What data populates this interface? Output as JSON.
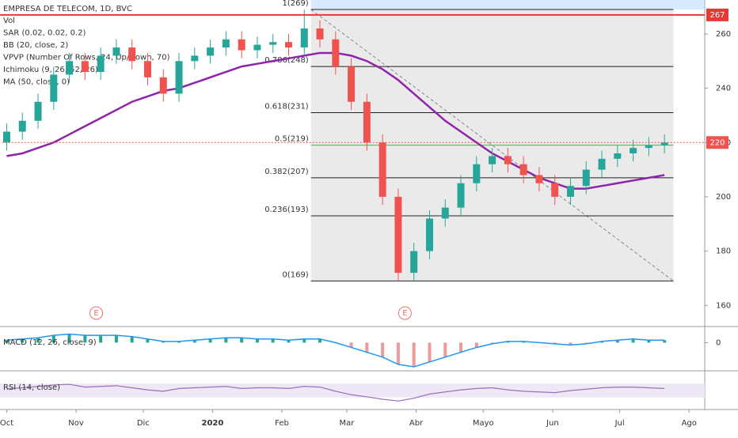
{
  "chart_data": {
    "type": "candlestick",
    "title": "EMPRESA DE TELECOM, 1D, BVC",
    "indicators": [
      "Vol",
      "SAR (0.02, 0.02, 0.2)",
      "BB (20, close, 2)",
      "VPVP (Number Of Rows, 24, Up/Down, 70)",
      "Ichimoku (9, 26, 52, 26)",
      "MA (50, close, 0)"
    ],
    "x": [
      0,
      7,
      14,
      21,
      28,
      35,
      42,
      49,
      56,
      63,
      70,
      77,
      84,
      91,
      98,
      105,
      112,
      119,
      126,
      133,
      140,
      147,
      154,
      161,
      168,
      175,
      182,
      189,
      196,
      203,
      210,
      217,
      224,
      231,
      238,
      245,
      252,
      259,
      266,
      273,
      280,
      287,
      294
    ],
    "open": [
      220,
      224,
      228,
      235,
      245,
      250,
      246,
      252,
      255,
      250,
      244,
      238,
      250,
      252,
      255,
      258,
      254,
      256,
      257,
      255,
      262,
      258,
      248,
      235,
      220,
      200,
      172,
      180,
      192,
      196,
      205,
      212,
      215,
      212,
      208,
      205,
      200,
      204,
      210,
      214,
      216,
      218,
      219
    ],
    "high": [
      227,
      231,
      238,
      248,
      253,
      253,
      255,
      258,
      258,
      253,
      247,
      253,
      255,
      258,
      261,
      261,
      259,
      260,
      260,
      269,
      265,
      261,
      251,
      238,
      223,
      203,
      183,
      195,
      199,
      208,
      215,
      218,
      218,
      215,
      211,
      208,
      207,
      213,
      217,
      219,
      221,
      222,
      223
    ],
    "low": [
      217,
      221,
      225,
      232,
      242,
      243,
      243,
      249,
      247,
      241,
      235,
      235,
      247,
      249,
      252,
      251,
      251,
      253,
      252,
      252,
      255,
      245,
      232,
      217,
      197,
      169,
      169,
      177,
      189,
      193,
      202,
      209,
      209,
      205,
      202,
      197,
      197,
      201,
      207,
      211,
      213,
      215,
      216
    ],
    "close": [
      224,
      228,
      235,
      245,
      250,
      246,
      252,
      255,
      250,
      244,
      238,
      250,
      252,
      255,
      258,
      254,
      256,
      257,
      255,
      262,
      258,
      248,
      235,
      220,
      200,
      172,
      180,
      192,
      196,
      205,
      212,
      215,
      212,
      208,
      205,
      200,
      204,
      210,
      214,
      216,
      218,
      219,
      220
    ],
    "up_color": "#26a69a",
    "down_color": "#ef5350",
    "ma": {
      "color": "#8e24aa",
      "values": [
        215,
        216,
        218,
        220,
        223,
        226,
        229,
        232,
        235,
        237,
        239,
        240,
        242,
        244,
        246,
        248,
        249,
        250,
        251,
        252,
        253,
        253,
        252,
        250,
        247,
        243,
        238,
        233,
        228,
        224,
        220,
        216,
        213,
        210,
        207,
        205,
        203,
        203,
        204,
        205,
        206,
        207,
        208
      ]
    },
    "xlim": [
      -3,
      312
    ],
    "xticks": [
      {
        "value": 0,
        "label": "Oct"
      },
      {
        "value": 31,
        "label": "Nov"
      },
      {
        "value": 61,
        "label": "Dic"
      },
      {
        "value": 92,
        "label": "2020"
      },
      {
        "value": 123,
        "label": "Feb"
      },
      {
        "value": 152,
        "label": "Mar"
      },
      {
        "value": 183,
        "label": "Abr"
      },
      {
        "value": 213,
        "label": "Mayo"
      },
      {
        "value": 244,
        "label": "Jun"
      },
      {
        "value": 274,
        "label": "Jul"
      },
      {
        "value": 305,
        "label": "Ago"
      }
    ],
    "ylim": [
      152.5,
      272.5
    ],
    "yticks": [
      160,
      180,
      200,
      220,
      240,
      260
    ],
    "price_labels": [
      {
        "value": 267,
        "color": "#e53935"
      },
      {
        "value": 220,
        "color": "#ef5350"
      }
    ],
    "fib_x": [
      136,
      298
    ],
    "fib": [
      {
        "value": 269,
        "label": "1(269)"
      },
      {
        "value": 248,
        "label": "0.786(248)"
      },
      {
        "value": 231,
        "label": "0.618(231)"
      },
      {
        "value": 219,
        "label": "0.5(219)"
      },
      {
        "value": 207,
        "label": "0.382(207)"
      },
      {
        "value": 193,
        "label": "0.236(193)"
      },
      {
        "value": 169,
        "label": "0(169)"
      }
    ],
    "events": [
      {
        "x": 40,
        "label": "E"
      },
      {
        "x": 178,
        "label": "E"
      }
    ],
    "macd": {
      "label": "MACD (12, 26, close, 9)",
      "color": "#2196f3",
      "ylim": [
        -11,
        6
      ],
      "yticks": [
        0
      ],
      "values": [
        1,
        1.5,
        2,
        3,
        3.5,
        3,
        3,
        3,
        2.5,
        1.5,
        0.5,
        0.5,
        1,
        1.5,
        2,
        2,
        1.5,
        1.5,
        1,
        1.5,
        1.5,
        0,
        -2,
        -4,
        -6,
        -9,
        -10,
        -8,
        -6,
        -4,
        -2,
        -0.5,
        0.5,
        0.5,
        0,
        -0.5,
        -1,
        -0.5,
        0.5,
        1,
        1.5,
        1,
        1
      ]
    },
    "rsi": {
      "label": "RSI (14, close)",
      "color": "#9c6fb6",
      "ylim": [
        0,
        100
      ],
      "values": [
        55,
        58,
        62,
        66,
        68,
        60,
        62,
        64,
        58,
        52,
        48,
        56,
        58,
        60,
        62,
        56,
        58,
        58,
        56,
        62,
        60,
        48,
        38,
        32,
        25,
        20,
        28,
        40,
        46,
        52,
        56,
        58,
        52,
        48,
        46,
        44,
        50,
        54,
        58,
        60,
        60,
        58,
        56
      ]
    }
  }
}
